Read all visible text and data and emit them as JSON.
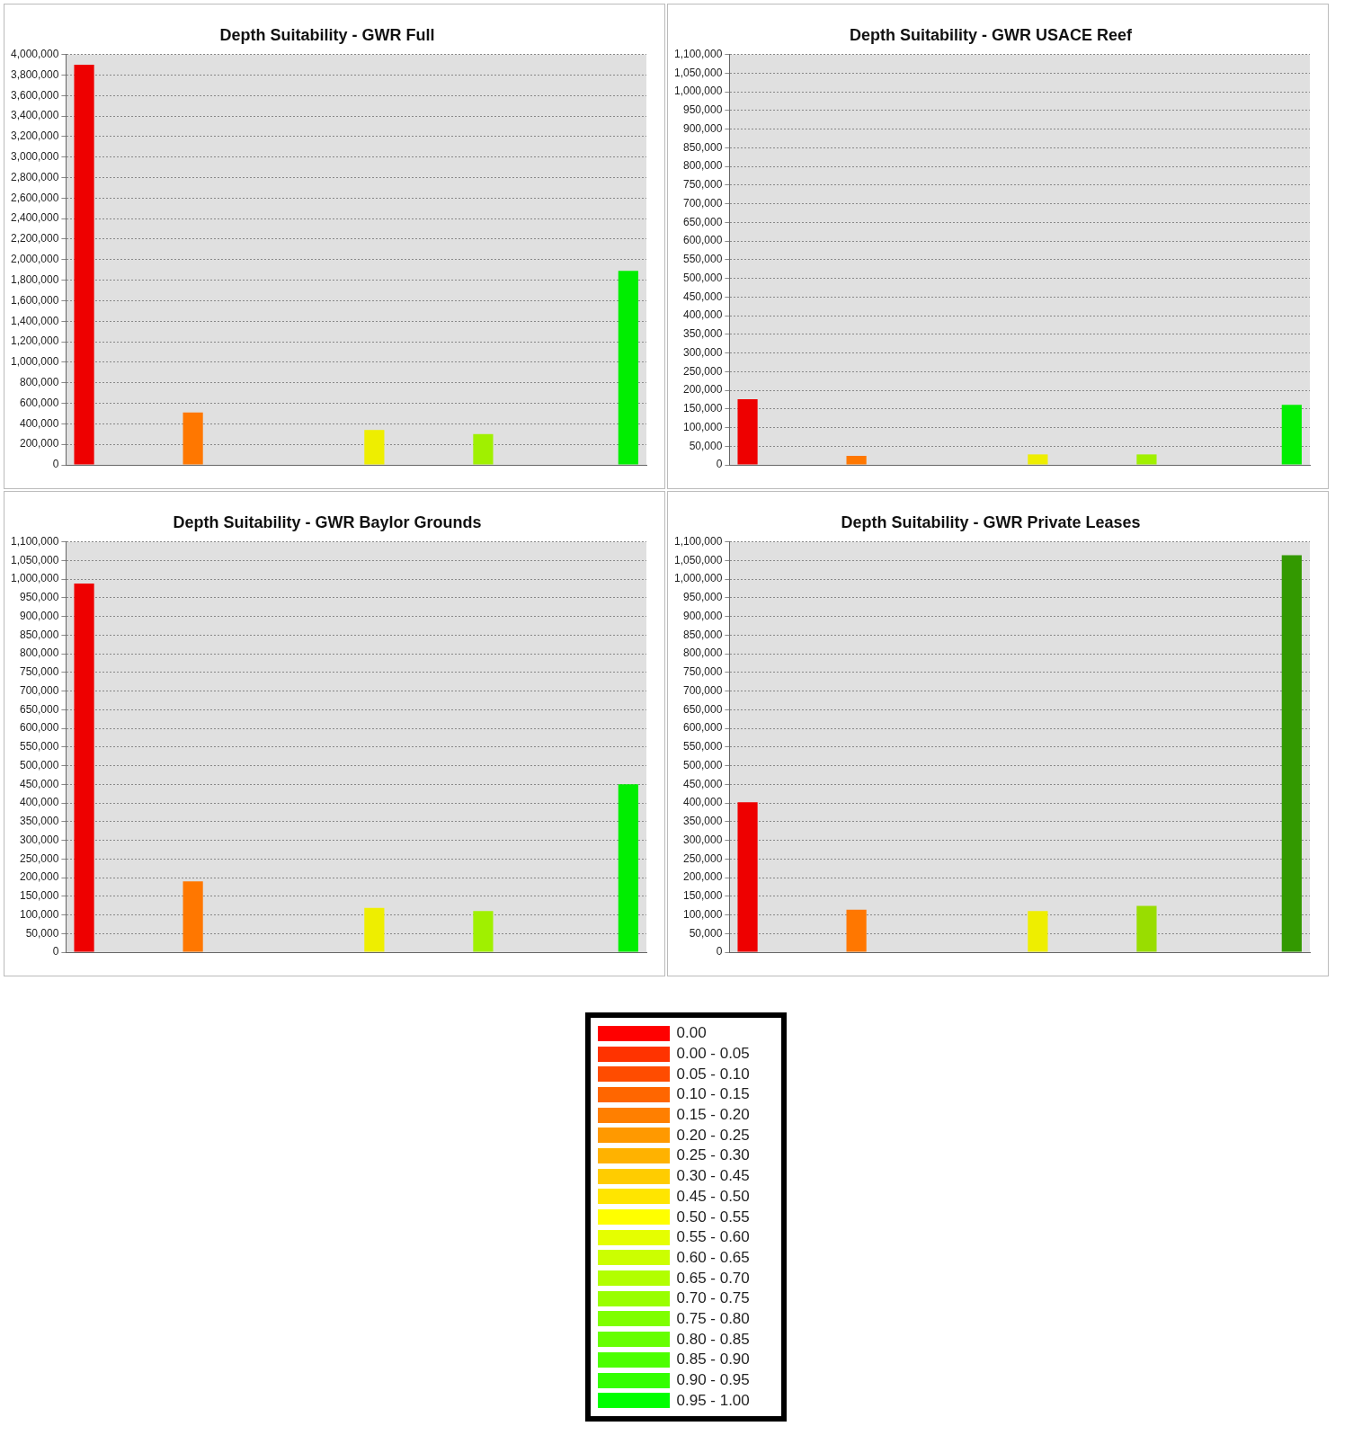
{
  "chart_data": [
    {
      "type": "bar",
      "title": "Depth Suitability - GWR Full",
      "categories": [
        null,
        null,
        null,
        null,
        null,
        null,
        null,
        null,
        null,
        null,
        null,
        null,
        null,
        null,
        null,
        null
      ],
      "values": [
        3900000,
        null,
        null,
        510000,
        null,
        null,
        null,
        null,
        340000,
        null,
        null,
        300000,
        null,
        null,
        null,
        1890000
      ],
      "colors": [
        "#ee0000",
        null,
        null,
        "#ff7700",
        null,
        null,
        null,
        null,
        "#eeee00",
        null,
        null,
        "#a0f000",
        null,
        null,
        null,
        "#00ee00"
      ],
      "ylim": [
        0,
        4000000
      ],
      "yticks": [
        {
          "value": 0,
          "label": "0"
        },
        {
          "value": 200000,
          "label": "200,000"
        },
        {
          "value": 400000,
          "label": "400,000"
        },
        {
          "value": 600000,
          "label": "600,000"
        },
        {
          "value": 800000,
          "label": "800,000"
        },
        {
          "value": 1000000,
          "label": "1,000,000"
        },
        {
          "value": 1200000,
          "label": "1,200,000"
        },
        {
          "value": 1400000,
          "label": "1,400,000"
        },
        {
          "value": 1600000,
          "label": "1,600,000"
        },
        {
          "value": 1800000,
          "label": "1,800,000"
        },
        {
          "value": 2000000,
          "label": "2,000,000"
        },
        {
          "value": 2200000,
          "label": "2,200,000"
        },
        {
          "value": 2400000,
          "label": "2,400,000"
        },
        {
          "value": 2600000,
          "label": "2,600,000"
        },
        {
          "value": 2800000,
          "label": "2,800,000"
        },
        {
          "value": 3000000,
          "label": "3,000,000"
        },
        {
          "value": 3200000,
          "label": "3,200,000"
        },
        {
          "value": 3400000,
          "label": "3,400,000"
        },
        {
          "value": 3600000,
          "label": "3,600,000"
        },
        {
          "value": 3800000,
          "label": "3,800,000"
        },
        {
          "value": 4000000,
          "label": "4,000,000"
        }
      ],
      "grid": "y",
      "tick_labels": "y"
    },
    {
      "type": "bar",
      "title": "Depth Suitability - GWR USACE Reef",
      "categories": [
        null,
        null,
        null,
        null,
        null,
        null,
        null,
        null,
        null,
        null,
        null,
        null,
        null,
        null,
        null,
        null
      ],
      "values": [
        176000,
        null,
        null,
        24000,
        null,
        null,
        null,
        null,
        28000,
        null,
        null,
        28000,
        null,
        null,
        null,
        161000
      ],
      "colors": [
        "#ee0000",
        null,
        null,
        "#ff7700",
        null,
        null,
        null,
        null,
        "#eeee00",
        null,
        null,
        "#a0f000",
        null,
        null,
        null,
        "#00ee00"
      ],
      "ylim": [
        0,
        1100000
      ],
      "yticks": [
        {
          "value": 0,
          "label": "0"
        },
        {
          "value": 50000,
          "label": "50,000"
        },
        {
          "value": 100000,
          "label": "100,000"
        },
        {
          "value": 150000,
          "label": "150,000"
        },
        {
          "value": 200000,
          "label": "200,000"
        },
        {
          "value": 250000,
          "label": "250,000"
        },
        {
          "value": 300000,
          "label": "300,000"
        },
        {
          "value": 350000,
          "label": "350,000"
        },
        {
          "value": 400000,
          "label": "400,000"
        },
        {
          "value": 450000,
          "label": "450,000"
        },
        {
          "value": 500000,
          "label": "500,000"
        },
        {
          "value": 550000,
          "label": "550,000"
        },
        {
          "value": 600000,
          "label": "600,000"
        },
        {
          "value": 650000,
          "label": "650,000"
        },
        {
          "value": 700000,
          "label": "700,000"
        },
        {
          "value": 750000,
          "label": "750,000"
        },
        {
          "value": 800000,
          "label": "800,000"
        },
        {
          "value": 850000,
          "label": "850,000"
        },
        {
          "value": 900000,
          "label": "900,000"
        },
        {
          "value": 950000,
          "label": "950,000"
        },
        {
          "value": 1000000,
          "label": "1,000,000"
        },
        {
          "value": 1050000,
          "label": "1,050,000"
        },
        {
          "value": 1100000,
          "label": "1,100,000"
        }
      ],
      "grid": "y",
      "tick_labels": "y"
    },
    {
      "type": "bar",
      "title": "Depth Suitability - GWR Baylor Grounds",
      "categories": [
        null,
        null,
        null,
        null,
        null,
        null,
        null,
        null,
        null,
        null,
        null,
        null,
        null,
        null,
        null,
        null
      ],
      "values": [
        988000,
        null,
        null,
        190000,
        null,
        null,
        null,
        null,
        119000,
        null,
        null,
        110000,
        null,
        null,
        null,
        450000
      ],
      "colors": [
        "#ee0000",
        null,
        null,
        "#ff7700",
        null,
        null,
        null,
        null,
        "#eeee00",
        null,
        null,
        "#a0f000",
        null,
        null,
        null,
        "#00ee00"
      ],
      "ylim": [
        0,
        1100000
      ],
      "yticks": [
        {
          "value": 0,
          "label": "0"
        },
        {
          "value": 50000,
          "label": "50,000"
        },
        {
          "value": 100000,
          "label": "100,000"
        },
        {
          "value": 150000,
          "label": "150,000"
        },
        {
          "value": 200000,
          "label": "200,000"
        },
        {
          "value": 250000,
          "label": "250,000"
        },
        {
          "value": 300000,
          "label": "300,000"
        },
        {
          "value": 350000,
          "label": "350,000"
        },
        {
          "value": 400000,
          "label": "400,000"
        },
        {
          "value": 450000,
          "label": "450,000"
        },
        {
          "value": 500000,
          "label": "500,000"
        },
        {
          "value": 550000,
          "label": "550,000"
        },
        {
          "value": 600000,
          "label": "600,000"
        },
        {
          "value": 650000,
          "label": "650,000"
        },
        {
          "value": 700000,
          "label": "700,000"
        },
        {
          "value": 750000,
          "label": "750,000"
        },
        {
          "value": 800000,
          "label": "800,000"
        },
        {
          "value": 850000,
          "label": "850,000"
        },
        {
          "value": 900000,
          "label": "900,000"
        },
        {
          "value": 950000,
          "label": "950,000"
        },
        {
          "value": 1000000,
          "label": "1,000,000"
        },
        {
          "value": 1050000,
          "label": "1,050,000"
        },
        {
          "value": 1100000,
          "label": "1,100,000"
        }
      ],
      "grid": "y",
      "tick_labels": "y"
    },
    {
      "type": "bar",
      "title": "Depth Suitability - GWR Private Leases",
      "categories": [
        null,
        null,
        null,
        null,
        null,
        null,
        null,
        null,
        null,
        null,
        null,
        null,
        null,
        null,
        null,
        null
      ],
      "values": [
        402000,
        null,
        null,
        114000,
        null,
        null,
        null,
        null,
        110000,
        null,
        null,
        124000,
        null,
        null,
        null,
        1064000
      ],
      "colors": [
        "#ee0000",
        null,
        null,
        "#ff7700",
        null,
        null,
        null,
        null,
        "#eeee00",
        null,
        null,
        "#99dd00",
        null,
        null,
        null,
        "#339900"
      ],
      "ylim": [
        0,
        1100000
      ],
      "yticks": [
        {
          "value": 0,
          "label": "0"
        },
        {
          "value": 50000,
          "label": "50,000"
        },
        {
          "value": 100000,
          "label": "100,000"
        },
        {
          "value": 150000,
          "label": "150,000"
        },
        {
          "value": 200000,
          "label": "200,000"
        },
        {
          "value": 250000,
          "label": "250,000"
        },
        {
          "value": 300000,
          "label": "300,000"
        },
        {
          "value": 350000,
          "label": "350,000"
        },
        {
          "value": 400000,
          "label": "400,000"
        },
        {
          "value": 450000,
          "label": "450,000"
        },
        {
          "value": 500000,
          "label": "500,000"
        },
        {
          "value": 550000,
          "label": "550,000"
        },
        {
          "value": 600000,
          "label": "600,000"
        },
        {
          "value": 650000,
          "label": "650,000"
        },
        {
          "value": 700000,
          "label": "700,000"
        },
        {
          "value": 750000,
          "label": "750,000"
        },
        {
          "value": 800000,
          "label": "800,000"
        },
        {
          "value": 850000,
          "label": "850,000"
        },
        {
          "value": 900000,
          "label": "900,000"
        },
        {
          "value": 950000,
          "label": "950,000"
        },
        {
          "value": 1000000,
          "label": "1,000,000"
        },
        {
          "value": 1050000,
          "label": "1,050,000"
        },
        {
          "value": 1100000,
          "label": "1,100,000"
        }
      ],
      "grid": "y",
      "tick_labels": "y"
    },
    {
      "type": "other",
      "categories": [
        "0.00",
        "0.00 - 0.05",
        "0.05 - 0.10",
        "0.10 - 0.15",
        "0.15 - 0.20",
        "0.20 - 0.25",
        "0.25 - 0.30",
        "0.30 - 0.45",
        "0.45 - 0.50",
        "0.50 - 0.55",
        "0.55 - 0.60",
        "0.60 - 0.65",
        "0.65 - 0.70",
        "0.70 - 0.75",
        "0.75 - 0.80",
        "0.80 - 0.85",
        "0.85 - 0.90",
        "0.90 - 0.95",
        "0.95 - 1.00"
      ],
      "colors": [
        "#ff0000",
        "#ff3300",
        "#ff4c00",
        "#ff6600",
        "#ff7f00",
        "#ff9900",
        "#ffb200",
        "#ffcc00",
        "#ffe500",
        "#ffff00",
        "#e5ff00",
        "#ccff00",
        "#b2ff00",
        "#99ff00",
        "#7fff00",
        "#66ff00",
        "#4cff00",
        "#33ff00",
        "#00ff00"
      ]
    }
  ]
}
